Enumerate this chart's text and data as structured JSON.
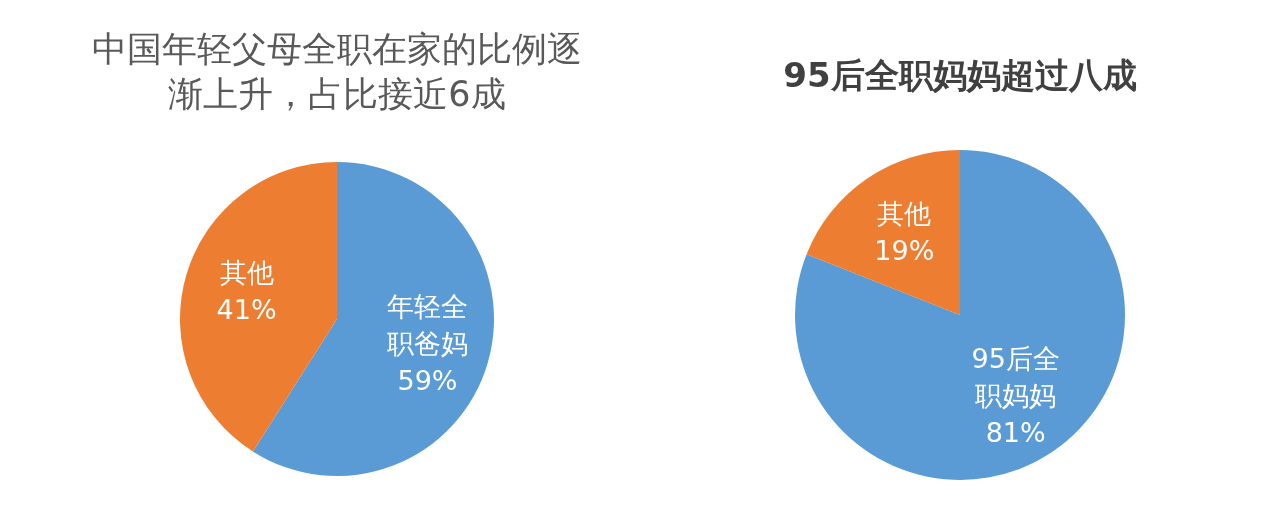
{
  "chart_data": [
    {
      "type": "pie",
      "title": "中国年轻父母全职在家的比例逐渐上升，占比接近6成",
      "categories": [
        "年轻全职爸妈",
        "其他"
      ],
      "values": [
        59,
        41
      ],
      "colors": [
        "#5b9bd5",
        "#ed7d31"
      ],
      "value_labels": [
        "59%",
        "41%"
      ]
    },
    {
      "type": "pie",
      "title": "95后全职妈妈超过八成",
      "categories": [
        "95后全职妈妈",
        "其他"
      ],
      "values": [
        81,
        19
      ],
      "colors": [
        "#5b9bd5",
        "#ed7d31"
      ],
      "value_labels": [
        "81%",
        "19%"
      ]
    }
  ]
}
